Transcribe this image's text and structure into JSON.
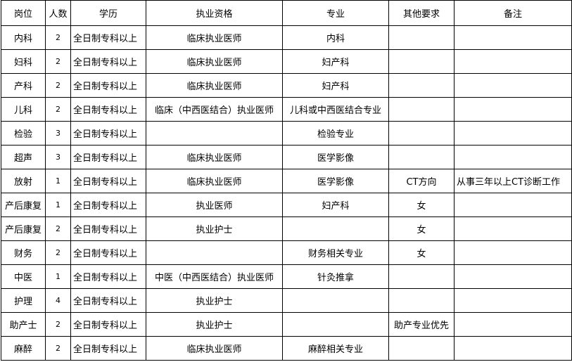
{
  "headers": [
    "岗位",
    "人数",
    "学历",
    "执业资格",
    "专业",
    "其他要求",
    "备注"
  ],
  "rows": [
    {
      "post": "内科",
      "count": "2",
      "edu": "全日制专科以上",
      "qual": "临床执业医师",
      "major": "内科",
      "other": "",
      "note": ""
    },
    {
      "post": "妇科",
      "count": "2",
      "edu": "全日制专科以上",
      "qual": "临床执业医师",
      "major": "妇产科",
      "other": "",
      "note": ""
    },
    {
      "post": "产科",
      "count": "2",
      "edu": "全日制专科以上",
      "qual": "临床执业医师",
      "major": "妇产科",
      "other": "",
      "note": ""
    },
    {
      "post": "儿科",
      "count": "2",
      "edu": "全日制专科以上",
      "qual": "临床（中西医结合）执业医师",
      "major": "儿科或中西医结合专业",
      "other": "",
      "note": ""
    },
    {
      "post": "检验",
      "count": "3",
      "edu": "全日制专科以上",
      "qual": "",
      "major": "检验专业",
      "other": "",
      "note": ""
    },
    {
      "post": "超声",
      "count": "3",
      "edu": "全日制专科以上",
      "qual": "临床执业医师",
      "major": "医学影像",
      "other": "",
      "note": ""
    },
    {
      "post": "放射",
      "count": "1",
      "edu": "全日制专科以上",
      "qual": "临床执业医师",
      "major": "医学影像",
      "other": "CT方向",
      "note": "从事三年以上CT诊断工作"
    },
    {
      "post": "产后康复",
      "count": "1",
      "edu": "全日制专科以上",
      "qual": "执业医师",
      "major": "妇产科",
      "other": "女",
      "note": ""
    },
    {
      "post": "产后康复",
      "count": "2",
      "edu": "全日制专科以上",
      "qual": "执业护士",
      "major": "",
      "other": "女",
      "note": ""
    },
    {
      "post": "财务",
      "count": "2",
      "edu": "全日制专科以上",
      "qual": "",
      "major": "财务相关专业",
      "other": "女",
      "note": ""
    },
    {
      "post": "中医",
      "count": "1",
      "edu": "全日制专科以上",
      "qual": "中医（中西医结合）执业医师",
      "major": "针灸推拿",
      "other": "",
      "note": ""
    },
    {
      "post": "护理",
      "count": "4",
      "edu": "全日制专科以上",
      "qual": "执业护士",
      "major": "",
      "other": "",
      "note": ""
    },
    {
      "post": "助产士",
      "count": "2",
      "edu": "全日制专科以上",
      "qual": "执业护士",
      "major": "",
      "other": "助产专业优先",
      "note": ""
    },
    {
      "post": "麻醉",
      "count": "2",
      "edu": "全日制专科以上",
      "qual": "临床执业医师",
      "major": "麻醉相关专业",
      "other": "",
      "note": ""
    }
  ]
}
